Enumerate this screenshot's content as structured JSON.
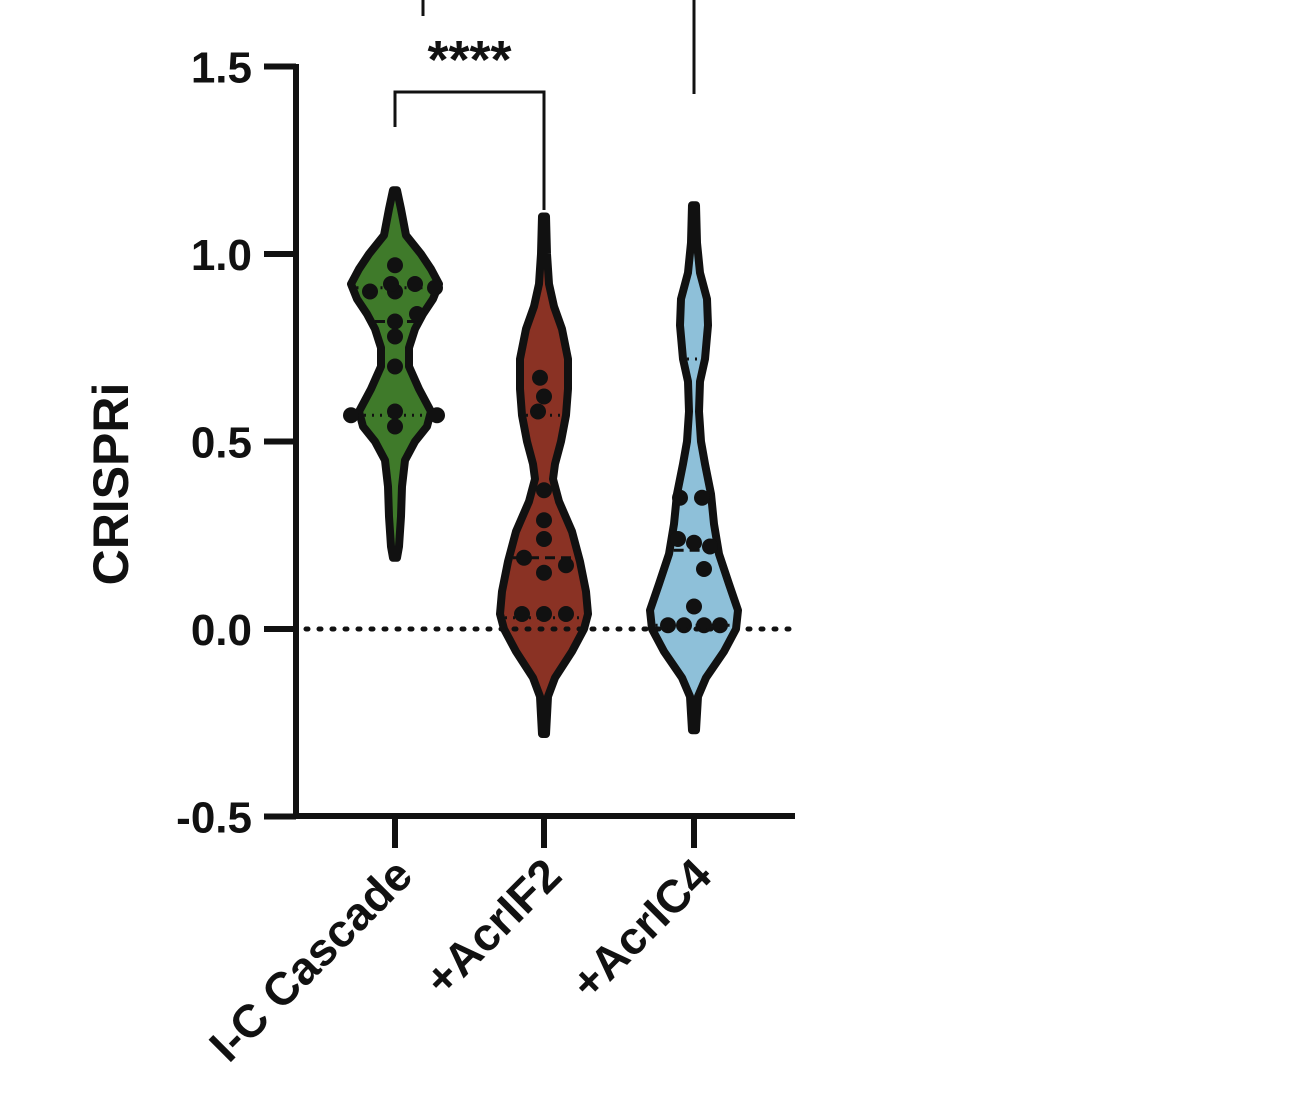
{
  "chart_data": {
    "type": "violin",
    "ylabel": "CRISPRi",
    "ylim": [
      -0.5,
      1.5
    ],
    "yticks": [
      "-0.5",
      "0.0",
      "0.5",
      "1.0",
      "1.5"
    ],
    "categories": [
      "I-C Cascade",
      "+AcrIF2",
      "+AcrIC4"
    ],
    "reference_line": 0.0,
    "colors": [
      "#3f7a2a",
      "#8a3224",
      "#8ec0d9"
    ],
    "violins": [
      {
        "min": 0.19,
        "max": 1.17,
        "q1": 0.57,
        "median": 0.82,
        "q3": 0.91
      },
      {
        "min": -0.28,
        "max": 1.1,
        "q1": 0.03,
        "median": 0.19,
        "q3": 0.57
      },
      {
        "min": -0.27,
        "max": 1.13,
        "q1": 0.01,
        "median": 0.21,
        "q3": 0.72
      }
    ],
    "points": [
      [
        0.97,
        0.9,
        0.9,
        0.92,
        0.92,
        0.91,
        0.82,
        0.84,
        0.78,
        0.7,
        0.57,
        0.58,
        0.57,
        0.54
      ],
      [
        0.67,
        0.62,
        0.58,
        0.37,
        0.29,
        0.24,
        0.19,
        0.17,
        0.15,
        0.04,
        0.04,
        0.04
      ],
      [
        0.35,
        0.35,
        0.24,
        0.23,
        0.22,
        0.16,
        0.06,
        0.01,
        0.01,
        0.01,
        0.01
      ]
    ],
    "significance": {
      "label": "****",
      "between": [
        0,
        1
      ],
      "y": 1.43
    }
  }
}
